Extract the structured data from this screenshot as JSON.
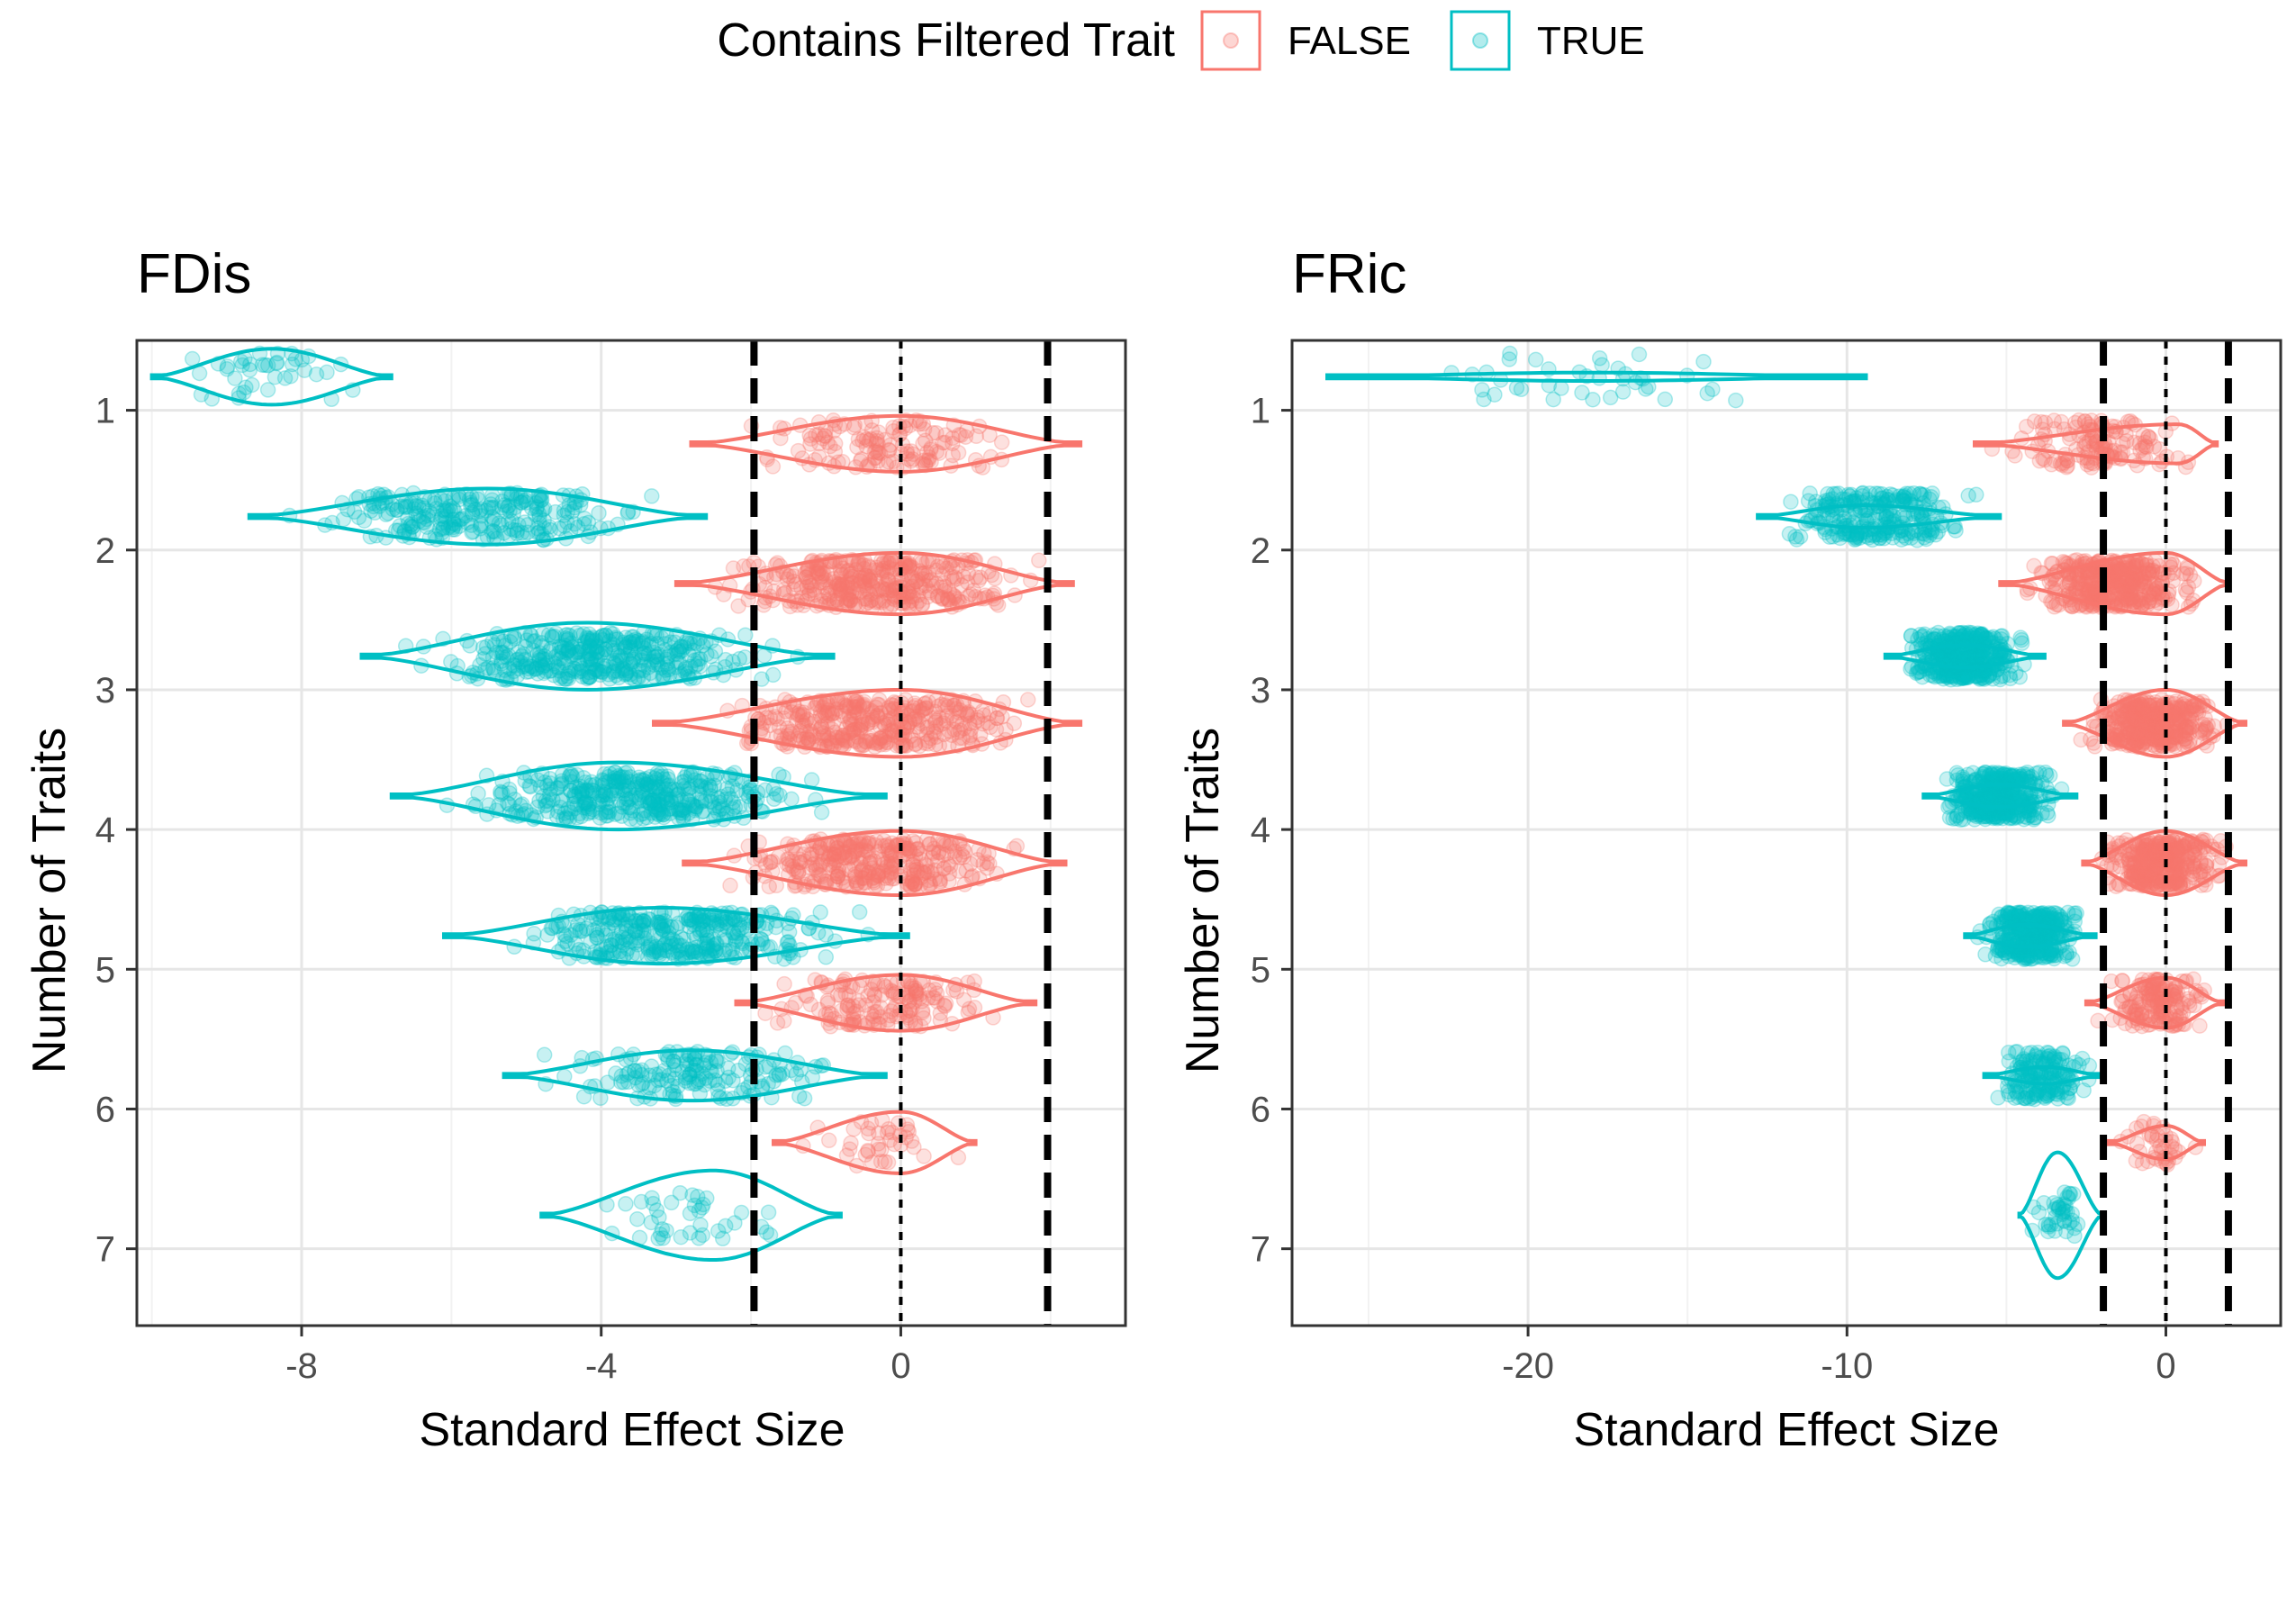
{
  "legend": {
    "title": "Contains Filtered Trait",
    "items": [
      {
        "label": "FALSE",
        "color": "#F8766D"
      },
      {
        "label": "TRUE",
        "color": "#00BFC4"
      }
    ]
  },
  "chart_data": [
    {
      "type": "violin",
      "title": "FDis",
      "xlabel": "Standard Effect Size",
      "ylabel": "Number of Traits",
      "xlim": [
        -10.2,
        3.0
      ],
      "xticks": [
        -8,
        -4,
        0
      ],
      "categories": [
        1,
        2,
        3,
        4,
        5,
        6,
        7
      ],
      "reference_lines": {
        "dashed_thick": [
          -1.96,
          1.96
        ],
        "dotted": [
          0
        ]
      },
      "grid": true,
      "legend_position": "top",
      "series": [
        {
          "name": "FALSE",
          "groups": [
            {
              "traits": 1,
              "min": -2.8,
              "max": 2.4,
              "peak": 0.0,
              "halfwidth": 0.2,
              "n": 140
            },
            {
              "traits": 2,
              "min": -3.0,
              "max": 2.3,
              "peak": 0.0,
              "halfwidth": 0.22,
              "n": 400
            },
            {
              "traits": 3,
              "min": -3.3,
              "max": 2.4,
              "peak": 0.0,
              "halfwidth": 0.24,
              "n": 400
            },
            {
              "traits": 4,
              "min": -2.9,
              "max": 2.2,
              "peak": 0.0,
              "halfwidth": 0.23,
              "n": 350
            },
            {
              "traits": 5,
              "min": -2.2,
              "max": 1.8,
              "peak": 0.0,
              "halfwidth": 0.2,
              "n": 160
            },
            {
              "traits": 6,
              "min": -1.7,
              "max": 1.0,
              "peak": 0.0,
              "halfwidth": 0.22,
              "n": 40
            }
          ]
        },
        {
          "name": "TRUE",
          "groups": [
            {
              "traits": 1,
              "min": -10.0,
              "max": -6.8,
              "peak": -8.4,
              "halfwidth": 0.2,
              "n": 40
            },
            {
              "traits": 2,
              "min": -8.7,
              "max": -2.6,
              "peak": -5.5,
              "halfwidth": 0.2,
              "n": 260
            },
            {
              "traits": 3,
              "min": -7.2,
              "max": -0.9,
              "peak": -4.2,
              "halfwidth": 0.24,
              "n": 400
            },
            {
              "traits": 4,
              "min": -6.8,
              "max": -0.2,
              "peak": -3.8,
              "halfwidth": 0.24,
              "n": 400
            },
            {
              "traits": 5,
              "min": -6.1,
              "max": 0.1,
              "peak": -3.2,
              "halfwidth": 0.2,
              "n": 350
            },
            {
              "traits": 6,
              "min": -5.3,
              "max": -0.2,
              "peak": -2.8,
              "halfwidth": 0.18,
              "n": 160
            },
            {
              "traits": 7,
              "min": -4.8,
              "max": -0.8,
              "peak": -2.5,
              "halfwidth": 0.32,
              "n": 40
            }
          ]
        }
      ]
    },
    {
      "type": "violin",
      "title": "FRic",
      "xlabel": "Standard Effect Size",
      "ylabel": "Number of Traits",
      "xlim": [
        -27.4,
        3.6
      ],
      "xticks": [
        -20,
        -10,
        0
      ],
      "categories": [
        1,
        2,
        3,
        4,
        5,
        6,
        7
      ],
      "reference_lines": {
        "dashed_thick": [
          -1.96,
          1.96
        ],
        "dotted": [
          0
        ]
      },
      "grid": true,
      "legend_position": "top",
      "series": [
        {
          "name": "FALSE",
          "groups": [
            {
              "traits": 1,
              "min": -6.0,
              "max": 1.6,
              "peak": 0.4,
              "halfwidth": 0.14,
              "n": 140
            },
            {
              "traits": 2,
              "min": -5.2,
              "max": 2.0,
              "peak": 0.0,
              "halfwidth": 0.22,
              "n": 400
            },
            {
              "traits": 3,
              "min": -3.2,
              "max": 2.5,
              "peak": 0.0,
              "halfwidth": 0.24,
              "n": 400
            },
            {
              "traits": 4,
              "min": -2.6,
              "max": 2.5,
              "peak": 0.0,
              "halfwidth": 0.23,
              "n": 350
            },
            {
              "traits": 5,
              "min": -2.5,
              "max": 1.8,
              "peak": 0.0,
              "halfwidth": 0.18,
              "n": 160
            },
            {
              "traits": 6,
              "min": -1.8,
              "max": 1.2,
              "peak": 0.0,
              "halfwidth": 0.12,
              "n": 40
            }
          ]
        },
        {
          "name": "TRUE",
          "groups": [
            {
              "traits": 1,
              "min": -26.3,
              "max": -9.4,
              "peak": -18.0,
              "halfwidth": 0.03,
              "n": 40
            },
            {
              "traits": 2,
              "min": -12.8,
              "max": -5.2,
              "peak": -9.5,
              "halfwidth": 0.08,
              "n": 260
            },
            {
              "traits": 3,
              "min": -8.8,
              "max": -3.8,
              "peak": -6.3,
              "halfwidth": 0.08,
              "n": 400
            },
            {
              "traits": 4,
              "min": -7.6,
              "max": -2.8,
              "peak": -5.2,
              "halfwidth": 0.08,
              "n": 400
            },
            {
              "traits": 5,
              "min": -6.3,
              "max": -2.2,
              "peak": -4.4,
              "halfwidth": 0.08,
              "n": 350
            },
            {
              "traits": 6,
              "min": -5.7,
              "max": -2.0,
              "peak": -3.8,
              "halfwidth": 0.06,
              "n": 160
            },
            {
              "traits": 7,
              "min": -4.6,
              "max": -2.0,
              "peak": -3.4,
              "halfwidth": 0.45,
              "n": 40
            }
          ]
        }
      ]
    }
  ]
}
